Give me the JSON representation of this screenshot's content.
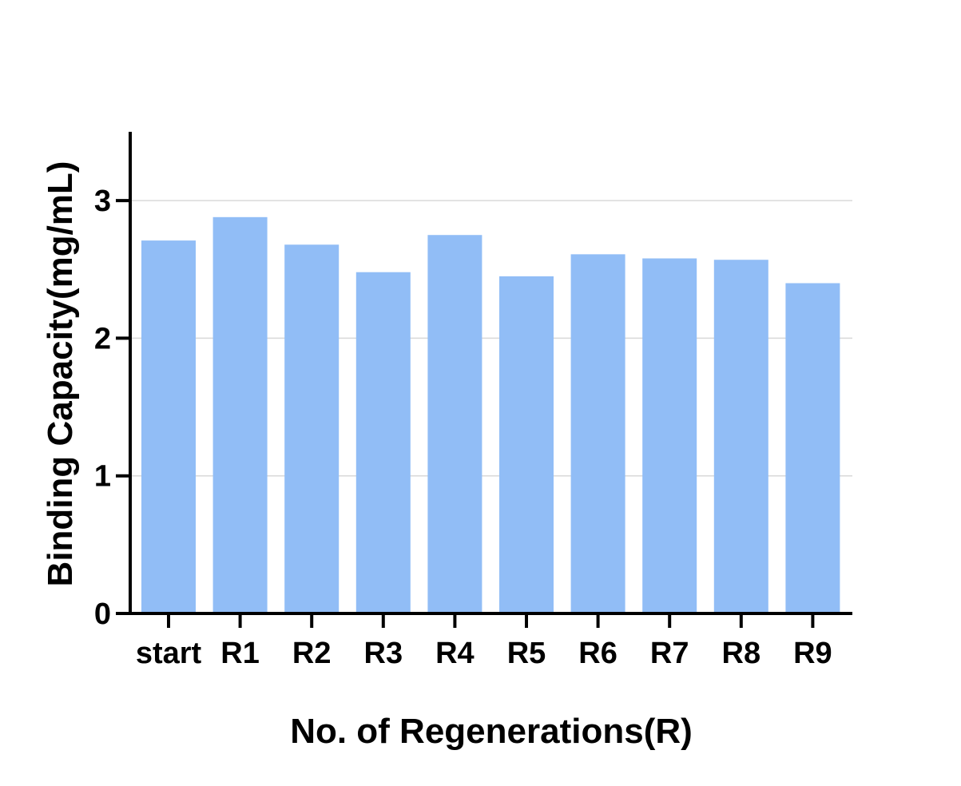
{
  "chart_data": {
    "type": "bar",
    "title": "",
    "xlabel": "No. of Regenerations(R)",
    "ylabel": "Binding Capacity(mg/mL)",
    "categories": [
      "start",
      "R1",
      "R2",
      "R3",
      "R4",
      "R5",
      "R6",
      "R7",
      "R8",
      "R9"
    ],
    "values": [
      2.71,
      2.88,
      2.68,
      2.48,
      2.75,
      2.45,
      2.61,
      2.58,
      2.57,
      2.4
    ],
    "ylim": [
      0,
      3.5
    ],
    "yticks": [
      "0",
      "1",
      "2",
      "3"
    ],
    "grid": true,
    "legend": "none",
    "colors": {
      "bar": "#91bdf6",
      "axis": "#000000",
      "grid": "#d9d9d9"
    }
  }
}
